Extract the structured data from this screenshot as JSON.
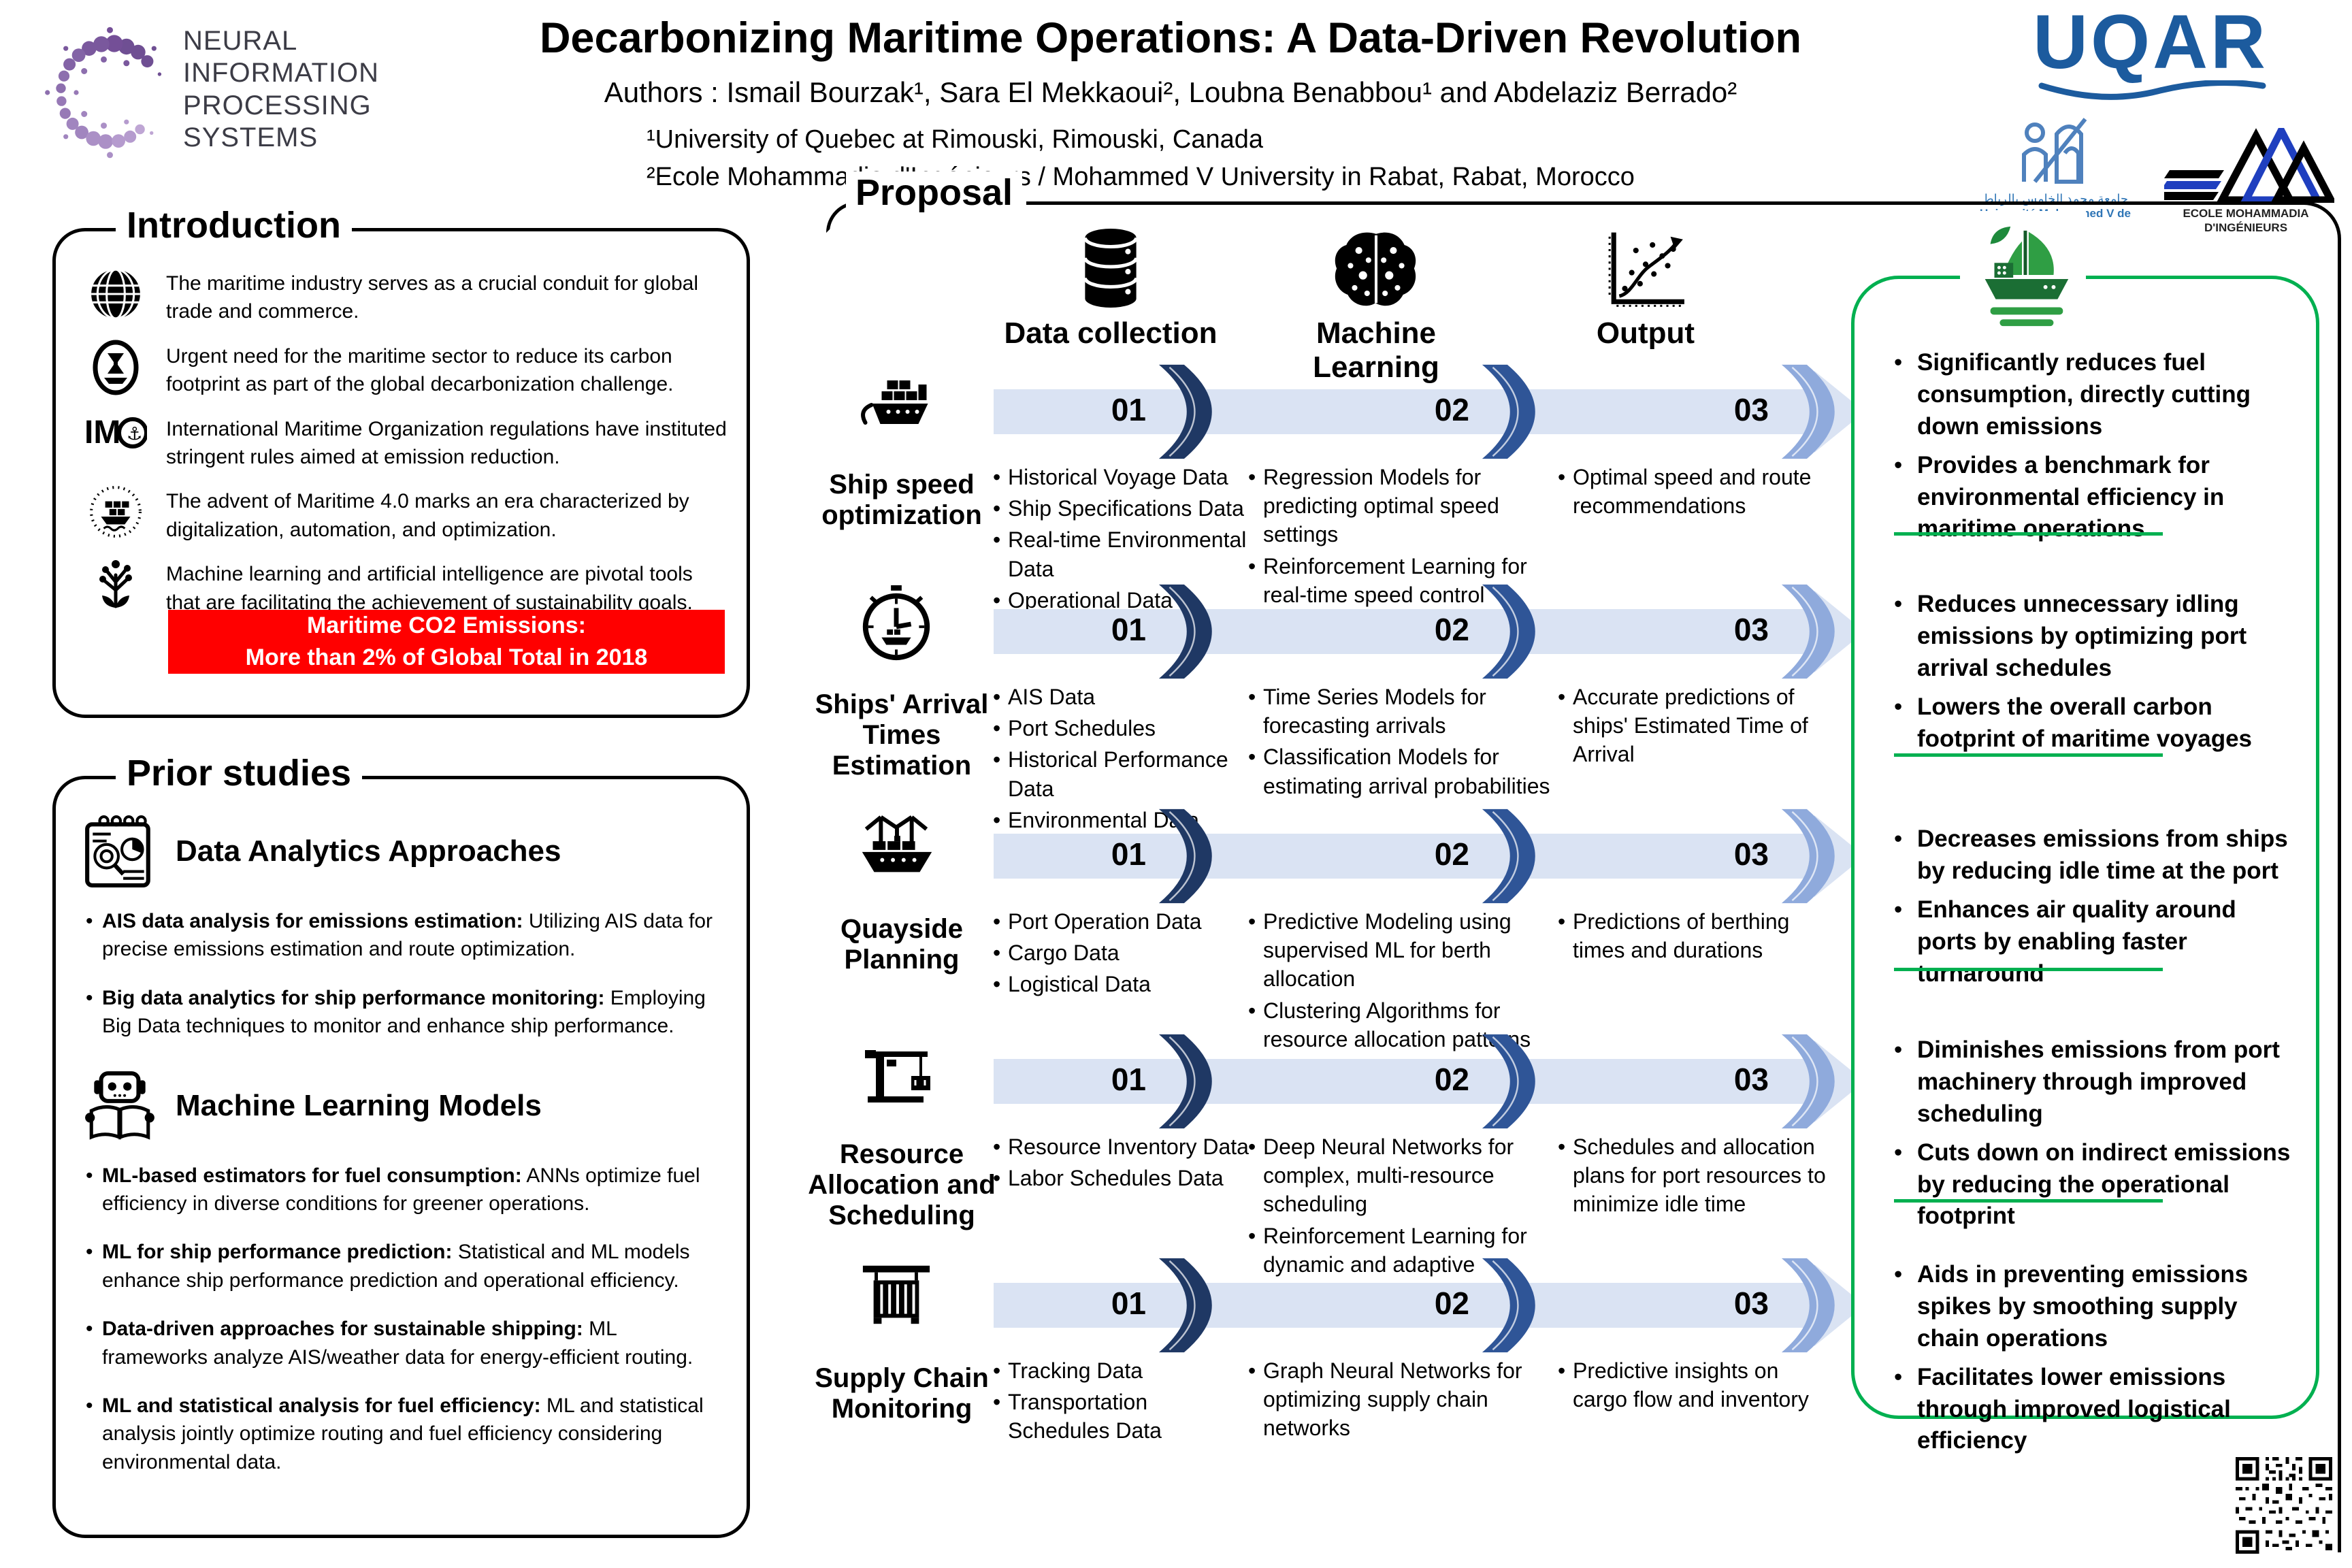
{
  "header": {
    "neurips_wordmark": "NEURAL INFORMATION\nPROCESSING SYSTEMS",
    "title": "Decarbonizing Maritime Operations: A Data-Driven Revolution",
    "authors": "Authors : Ismail Bourzak¹, Sara El Mekkaoui², Loubna Benabbou¹ and Abdelaziz Berrado²",
    "affiliation1": "¹University of Quebec at Rimouski, Rimouski, Canada",
    "affiliation2": "²Ecole Mohammadia d'Ingénieurs / Mohammed V University in Rabat, Rabat, Morocco",
    "uqar_logo_text": "UQAR",
    "um5_caption_ar": "جامعة محمد الخامس بالرباط",
    "um5_caption": "Université Mohammed V de Rabat",
    "emi_caption": "ECOLE MOHAMMADIA D'INGÉNIEURS"
  },
  "introduction": {
    "label": "Introduction",
    "bullets": [
      {
        "icon": "globe-icon",
        "text": "The maritime industry serves as a crucial conduit for global trade and commerce."
      },
      {
        "icon": "hourglass-ship-icon",
        "text": "Urgent need for the maritime sector to reduce its carbon footprint as part of the global decarbonization challenge."
      },
      {
        "icon": "imo-icon",
        "text": "International Maritime Organization regulations have instituted stringent rules aimed at emission reduction."
      },
      {
        "icon": "maritime-4-icon",
        "text": "The advent of Maritime 4.0 marks an era characterized by digitalization, automation, and optimization."
      },
      {
        "icon": "ml-ai-icon",
        "text": "Machine learning and artificial intelligence are pivotal tools that are facilitating the achievement of sustainability goals."
      }
    ],
    "banner": {
      "line1": "Maritime CO2 Emissions:",
      "line2": "More than 2% of Global Total in 2018",
      "color": "#ff0000"
    }
  },
  "prior_studies": {
    "label": "Prior studies",
    "sections": [
      {
        "title": "Data Analytics Approaches",
        "icon": "report-analytics-icon",
        "bullets": [
          {
            "lead": "AIS data analysis for emissions estimation:",
            "rest": " Utilizing AIS data for precise emissions estimation and route optimization."
          },
          {
            "lead": "Big data analytics for ship performance monitoring:",
            "rest": " Employing Big Data techniques to monitor and enhance ship performance."
          }
        ]
      },
      {
        "title": "Machine Learning Models",
        "icon": "robot-book-icon",
        "bullets": [
          {
            "lead": "ML-based estimators for fuel consumption:",
            "rest": " ANNs optimize fuel efficiency in diverse conditions for greener operations."
          },
          {
            "lead": "ML for ship performance prediction:",
            "rest": " Statistical and ML models enhance ship performance prediction and operational efficiency."
          },
          {
            "lead": "Data-driven approaches for sustainable shipping:",
            "rest": " ML frameworks analyze AIS/weather data for energy-efficient routing."
          },
          {
            "lead": "ML and statistical analysis for fuel efficiency:",
            "rest": " ML and statistical analysis jointly optimize routing and fuel efficiency considering environmental data."
          }
        ]
      }
    ]
  },
  "proposal": {
    "label": "Proposal",
    "columns": [
      {
        "label": "Data collection",
        "icon": "database-icon"
      },
      {
        "label": "Machine Learning",
        "icon": "brain-icon"
      },
      {
        "label": "Output",
        "icon": "output-chart-icon"
      }
    ],
    "step_numbers": [
      "01",
      "02",
      "03"
    ],
    "step_colors": [
      "#1f3864",
      "#2f5597",
      "#8faadc"
    ],
    "rows": [
      {
        "label": "Ship speed optimization",
        "icon": "cargo-ship-icon",
        "data_collection": [
          "Historical Voyage Data",
          "Ship Specifications Data",
          "Real-time Environmental Data",
          "Operational Data"
        ],
        "machine_learning": [
          "Regression Models for predicting optimal speed settings",
          "Reinforcement Learning for real-time speed control adjustments"
        ],
        "output": [
          "Optimal speed and route recommendations"
        ]
      },
      {
        "label": "Ships' Arrival Times Estimation",
        "icon": "ship-clock-icon",
        "data_collection": [
          "AIS Data",
          "Port Schedules",
          "Historical Performance Data",
          "Environmental Data"
        ],
        "machine_learning": [
          "Time Series Models for forecasting arrivals",
          "Classification Models for estimating arrival probabilities"
        ],
        "output": [
          "Accurate predictions of ships' Estimated Time of Arrival"
        ]
      },
      {
        "label": "Quayside Planning",
        "icon": "quayside-ship-icon",
        "data_collection": [
          "Port Operation Data",
          "Cargo Data",
          "Logistical Data"
        ],
        "machine_learning": [
          "Predictive Modeling using supervised ML for berth allocation",
          "Clustering Algorithms for resource allocation patterns"
        ],
        "output": [
          "Predictions of berthing times and durations"
        ]
      },
      {
        "label": "Resource Allocation and Scheduling",
        "icon": "crane-icon",
        "data_collection": [
          "Resource Inventory Data",
          "Labor Schedules Data"
        ],
        "machine_learning": [
          "Deep Neural Networks for complex, multi-resource scheduling",
          "Reinforcement Learning for dynamic and adaptive scheduling"
        ],
        "output": [
          "Schedules and allocation plans for port resources to minimize idle time"
        ]
      },
      {
        "label": "Supply Chain Monitoring",
        "icon": "warehouse-icon",
        "data_collection": [
          "Tracking Data",
          "Transportation Schedules Data"
        ],
        "machine_learning": [
          "Graph Neural Networks for optimizing supply chain networks"
        ],
        "output": [
          "Predictive insights on cargo flow and inventory"
        ]
      }
    ]
  },
  "benefits": {
    "icon": "green-ship-icon",
    "border_color": "#00b050",
    "sections": [
      [
        "Significantly reduces fuel consumption, directly cutting down emissions",
        "Provides a benchmark for environmental efficiency in maritime operations"
      ],
      [
        "Reduces unnecessary idling emissions by optimizing port arrival schedules",
        "Lowers the overall carbon footprint of maritime voyages"
      ],
      [
        "Decreases emissions from ships by reducing idle time at the port",
        "Enhances air quality around ports by enabling faster turnaround"
      ],
      [
        "Diminishes emissions from port machinery through improved scheduling",
        "Cuts down on indirect emissions by reducing the operational footprint"
      ],
      [
        "Aids in preventing emissions spikes by smoothing supply chain operations",
        "Facilitates lower emissions through improved logistical efficiency"
      ]
    ]
  }
}
